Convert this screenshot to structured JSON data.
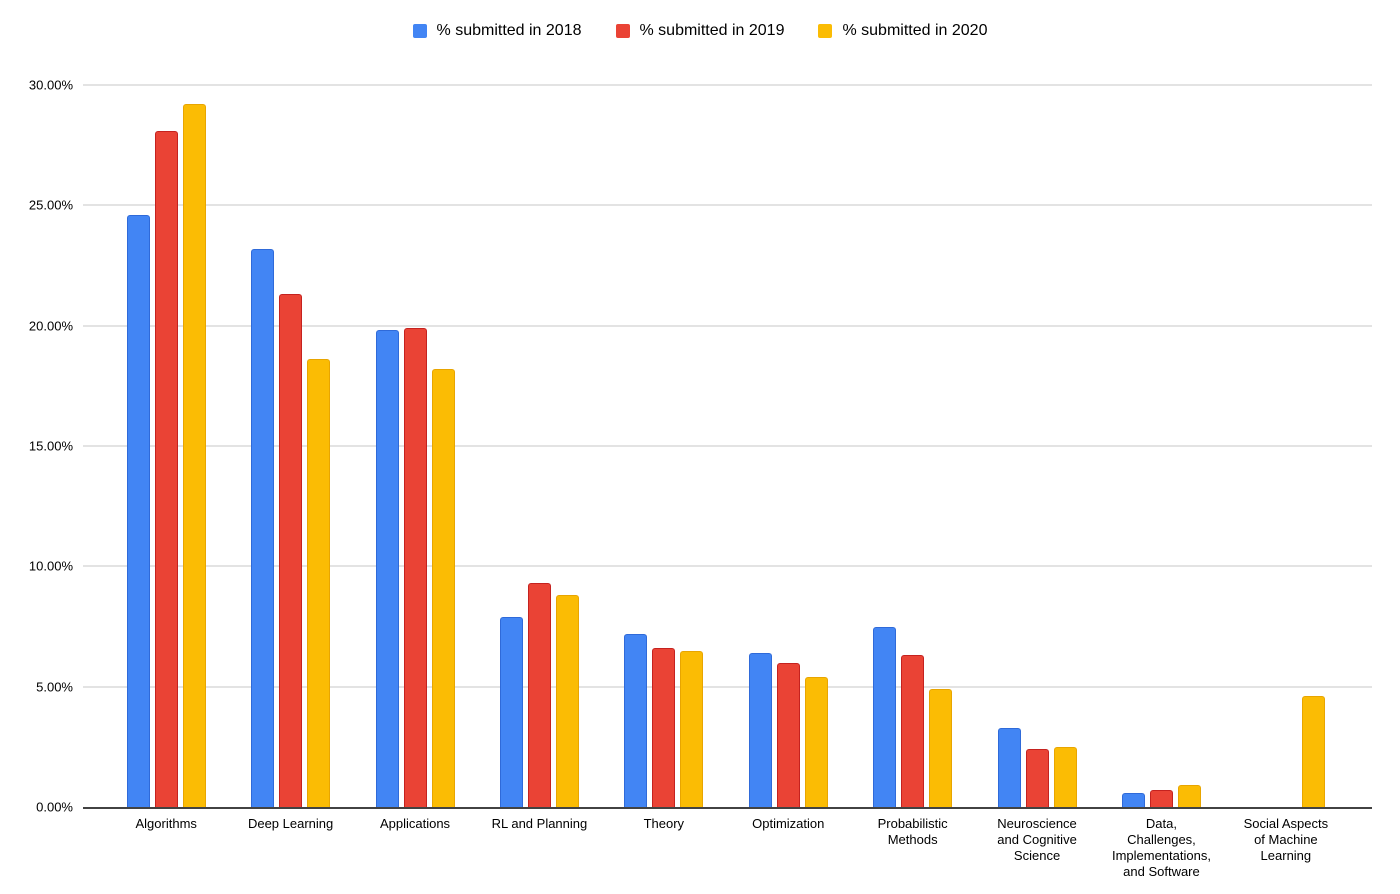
{
  "chart_data": {
    "type": "bar",
    "title": "",
    "categories": [
      "Algorithms",
      "Deep Learning",
      "Applications",
      "RL and Planning",
      "Theory",
      "Optimization",
      "Probabilistic\nMethods",
      "Neuroscience\nand Cognitive\nScience",
      "Data,\nChallenges,\nImplementations,\nand Software",
      "Social Aspects\nof Machine\nLearning"
    ],
    "series": [
      {
        "name": "% submitted in 2018",
        "color": "#4285F4",
        "border_color": "#2f6ad9",
        "values": [
          24.6,
          23.2,
          19.8,
          7.9,
          7.2,
          6.4,
          7.5,
          3.3,
          0.6,
          0
        ]
      },
      {
        "name": "% submitted in 2019",
        "color": "#EA4335",
        "border_color": "#c5221f",
        "values": [
          28.1,
          21.3,
          19.9,
          9.3,
          6.6,
          6.0,
          6.3,
          2.4,
          0.7,
          0
        ]
      },
      {
        "name": "% submitted in 2020",
        "color": "#FBBC04",
        "border_color": "#e8a500",
        "values": [
          29.2,
          18.6,
          18.2,
          8.8,
          6.5,
          5.4,
          4.9,
          2.5,
          0.9,
          4.6
        ]
      }
    ],
    "ylim": [
      0,
      30
    ],
    "y_tick_values": [
      0,
      5,
      10,
      15,
      20,
      25,
      30
    ],
    "y_tick_labels": [
      "0.00%",
      "5.00%",
      "10.00%",
      "15.00%",
      "20.00%",
      "25.00%",
      "30.00%"
    ],
    "grid": true,
    "legend_position": "top"
  },
  "colors": {
    "gridline": "#e3e3e3",
    "axis": "#424242",
    "text": "#000000",
    "background": "#ffffff"
  }
}
